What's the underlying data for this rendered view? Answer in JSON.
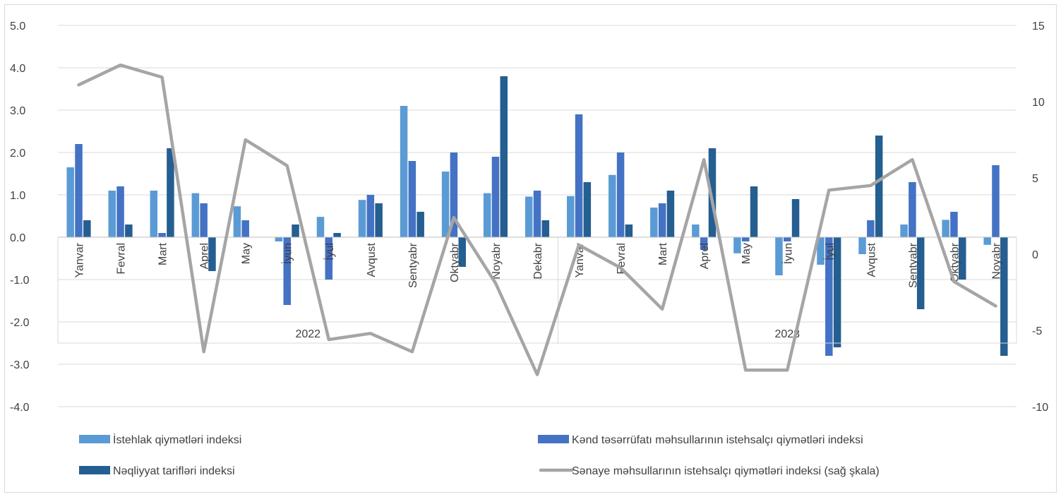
{
  "chart_data": {
    "type": "bar",
    "groups": [
      {
        "label": "2022",
        "categories": [
          "Yanvar",
          "Fevral",
          "Mart",
          "Aprel",
          "May",
          "İyun",
          "İyul",
          "Avqust",
          "Sentyabr",
          "Oktyabr",
          "Noyabr",
          "Dekabr"
        ]
      },
      {
        "label": "2023",
        "categories": [
          "Yanvar",
          "Fevral",
          "Mart",
          "Aprel",
          "May",
          "İyun",
          "İyul",
          "Avqust",
          "Sentyabr",
          "Oktyabr",
          "Noyabr"
        ]
      }
    ],
    "categories": [
      "Yanvar",
      "Fevral",
      "Mart",
      "Aprel",
      "May",
      "İyun",
      "İyul",
      "Avqust",
      "Sentyabr",
      "Oktyabr",
      "Noyabr",
      "Dekabr",
      "Yanvar",
      "Fevral",
      "Mart",
      "Aprel",
      "May",
      "İyun",
      "İyul",
      "Avqust",
      "Sentyabr",
      "Oktyabr",
      "Noyabr"
    ],
    "series": [
      {
        "name": "İstehlak qiymətləri indeksi",
        "type": "bar",
        "axis": "left",
        "color": "#5b9bd5",
        "values": [
          1.65,
          1.1,
          1.1,
          1.04,
          0.73,
          -0.1,
          0.48,
          0.88,
          3.1,
          1.55,
          1.04,
          0.96,
          0.97,
          1.47,
          0.7,
          0.3,
          -0.38,
          -0.9,
          -0.65,
          -0.4,
          0.3,
          0.41,
          -0.18
        ]
      },
      {
        "name": "Kənd təsərrüfatı məhsullarının istehsalçı qiymətləri indeksi",
        "type": "bar",
        "axis": "left",
        "color": "#4472c4",
        "values": [
          2.2,
          1.2,
          0.1,
          0.8,
          0.4,
          -1.6,
          -1.0,
          1.0,
          1.8,
          2.0,
          1.9,
          1.1,
          2.9,
          2.0,
          0.8,
          -0.3,
          -0.1,
          -0.1,
          -2.8,
          0.4,
          1.3,
          0.6,
          1.7
        ]
      },
      {
        "name": "Nəqliyyat tarifləri indeksi",
        "type": "bar",
        "axis": "left",
        "color": "#255e91",
        "values": [
          0.4,
          0.3,
          2.1,
          -0.8,
          0.0,
          0.3,
          0.1,
          0.8,
          0.6,
          -0.7,
          3.8,
          0.4,
          1.3,
          0.3,
          1.1,
          2.1,
          1.2,
          0.9,
          -2.6,
          2.4,
          -1.7,
          -1.0,
          -2.8
        ]
      },
      {
        "name": "Sənaye məhsullarının istehsalçı qiymətləri indeksi (sağ şkala)",
        "type": "line",
        "axis": "right",
        "color": "#a5a5a5",
        "values": [
          11.1,
          12.4,
          11.6,
          -6.4,
          7.5,
          5.8,
          -5.6,
          -5.2,
          -6.4,
          2.4,
          -1.9,
          -7.9,
          0.6,
          -0.9,
          -3.6,
          6.2,
          -7.6,
          -7.6,
          4.2,
          4.5,
          6.2,
          -1.8,
          -3.4
        ]
      }
    ],
    "y_left": {
      "min": -4,
      "max": 5,
      "ticks": [
        "5.0",
        "4.0",
        "3.0",
        "2.0",
        "1.0",
        "0.0",
        "-1.0",
        "-2.0",
        "-3.0",
        "-4.0"
      ]
    },
    "y_right": {
      "min": -10,
      "max": 15,
      "ticks": [
        "15",
        "10",
        "5",
        "0",
        "-5",
        "-10"
      ]
    },
    "grid": true,
    "legend_position": "bottom"
  }
}
